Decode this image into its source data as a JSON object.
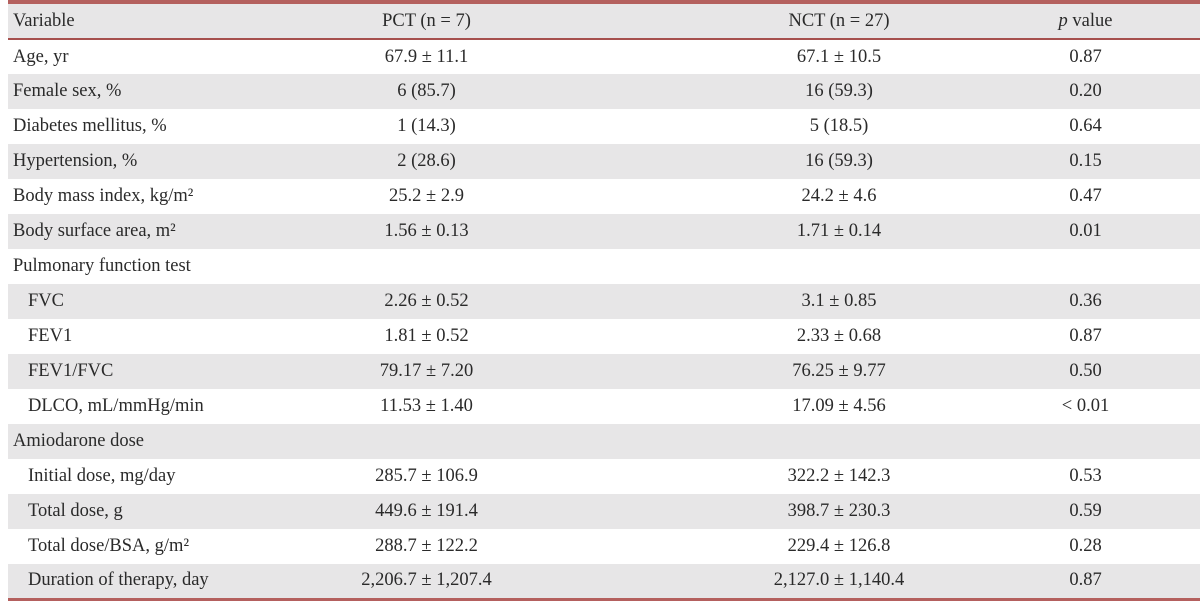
{
  "colors": {
    "accent_border": "#b4605e",
    "accent_border_dark": "#a6504e",
    "row_shade": "#e7e6e7",
    "text": "#2a2a2a",
    "background": "#ffffff"
  },
  "table": {
    "header": {
      "variable": "Variable",
      "pct": "PCT (n = 7)",
      "nct": "NCT (n = 27)",
      "p_symbol": "p",
      "p_rest": " value"
    },
    "rows": [
      {
        "label": "Age, yr",
        "pct": "67.9 ± 11.1",
        "nct": "67.1 ± 10.5",
        "p": "0.87",
        "indent": false,
        "section": false,
        "shaded": false
      },
      {
        "label": "Female sex, %",
        "pct": "6 (85.7)",
        "nct": "16 (59.3)",
        "p": "0.20",
        "indent": false,
        "section": false,
        "shaded": true
      },
      {
        "label": "Diabetes mellitus, %",
        "pct": "1 (14.3)",
        "nct": "5 (18.5)",
        "p": "0.64",
        "indent": false,
        "section": false,
        "shaded": false
      },
      {
        "label": "Hypertension, %",
        "pct": "2 (28.6)",
        "nct": "16 (59.3)",
        "p": "0.15",
        "indent": false,
        "section": false,
        "shaded": true
      },
      {
        "label": "Body mass index, kg/m²",
        "pct": "25.2 ± 2.9",
        "nct": "24.2 ± 4.6",
        "p": "0.47",
        "indent": false,
        "section": false,
        "shaded": false
      },
      {
        "label": "Body surface area, m²",
        "pct": "1.56 ± 0.13",
        "nct": "1.71 ± 0.14",
        "p": "0.01",
        "indent": false,
        "section": false,
        "shaded": true
      },
      {
        "label": "Pulmonary function test",
        "pct": "",
        "nct": "",
        "p": "",
        "indent": false,
        "section": true,
        "shaded": false
      },
      {
        "label": "FVC",
        "pct": "2.26 ± 0.52",
        "nct": "3.1 ± 0.85",
        "p": "0.36",
        "indent": true,
        "section": false,
        "shaded": true
      },
      {
        "label": "FEV1",
        "pct": "1.81 ± 0.52",
        "nct": "2.33 ± 0.68",
        "p": "0.87",
        "indent": true,
        "section": false,
        "shaded": false
      },
      {
        "label": "FEV1/FVC",
        "pct": "79.17 ± 7.20",
        "nct": "76.25 ± 9.77",
        "p": "0.50",
        "indent": true,
        "section": false,
        "shaded": true
      },
      {
        "label": "DLCO, mL/mmHg/min",
        "pct": "11.53 ± 1.40",
        "nct": "17.09 ± 4.56",
        "p": "< 0.01",
        "indent": true,
        "section": false,
        "shaded": false
      },
      {
        "label": "Amiodarone dose",
        "pct": "",
        "nct": "",
        "p": "",
        "indent": false,
        "section": true,
        "shaded": true
      },
      {
        "label": "Initial dose, mg/day",
        "pct": "285.7 ± 106.9",
        "nct": "322.2 ± 142.3",
        "p": "0.53",
        "indent": true,
        "section": false,
        "shaded": false
      },
      {
        "label": "Total dose, g",
        "pct": "449.6 ± 191.4",
        "nct": "398.7 ± 230.3",
        "p": "0.59",
        "indent": true,
        "section": false,
        "shaded": true
      },
      {
        "label": "Total dose/BSA, g/m²",
        "pct": "288.7 ± 122.2",
        "nct": "229.4 ± 126.8",
        "p": "0.28",
        "indent": true,
        "section": false,
        "shaded": false
      },
      {
        "label": "Duration of therapy, day",
        "pct": "2,206.7 ± 1,207.4",
        "nct": "2,127.0 ± 1,140.4",
        "p": "0.87",
        "indent": true,
        "section": false,
        "shaded": true
      }
    ]
  }
}
